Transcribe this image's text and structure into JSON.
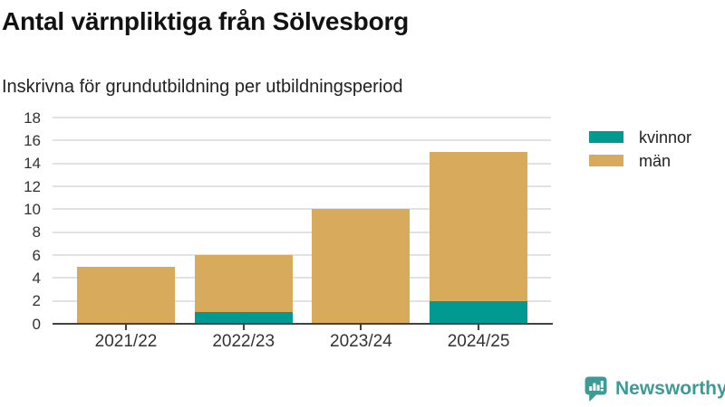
{
  "header": {
    "title": "Antal värnpliktiga från Sölvesborg",
    "subtitle": "Inskrivna för grundutbildning per utbildningsperiod"
  },
  "legend": {
    "position": "right",
    "items": [
      {
        "label": "kvinnor",
        "color": "#009a93"
      },
      {
        "label": "män",
        "color": "#d8ab5c"
      }
    ]
  },
  "branding": {
    "name": "Newsworthy",
    "color": "#3d9b97",
    "icon": "newsworthy-speech-bubble-bar-chart-icon"
  },
  "chart_data": {
    "type": "bar",
    "stacked": true,
    "title": "Antal värnpliktiga från Sölvesborg",
    "subtitle": "Inskrivna för grundutbildning per utbildningsperiod",
    "categories": [
      "2021/22",
      "2022/23",
      "2023/24",
      "2024/25"
    ],
    "series": [
      {
        "name": "kvinnor",
        "color": "#009a93",
        "values": [
          0,
          1,
          0,
          2
        ]
      },
      {
        "name": "män",
        "color": "#d8ab5c",
        "values": [
          5,
          5,
          10,
          13
        ]
      }
    ],
    "totals": [
      5,
      6,
      10,
      15
    ],
    "xlabel": "",
    "ylabel": "",
    "ylim": [
      0,
      18
    ],
    "ytick_step": 2,
    "yticks": [
      0,
      2,
      4,
      6,
      8,
      10,
      12,
      14,
      16,
      18
    ],
    "grid": true,
    "legend_position": "right"
  },
  "colors": {
    "grid": "#e2e2e2",
    "axis": "#424242",
    "axis_text": "#333333",
    "background": "#ffffff"
  }
}
